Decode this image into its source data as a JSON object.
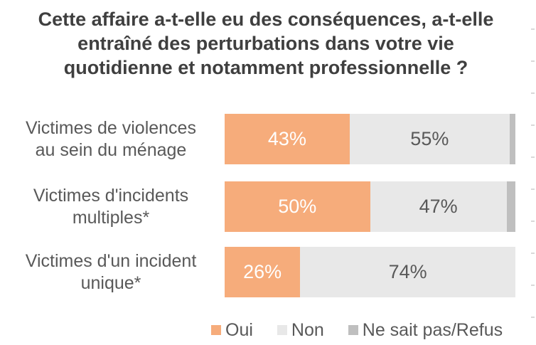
{
  "chart_data": {
    "type": "bar",
    "orientation": "horizontal",
    "stacked": true,
    "title": "Cette affaire a-t-elle eu des conséquences, a-t-elle entraîné des perturbations dans votre vie quotidienne et notamment professionnelle ?",
    "title_lines": [
      "Cette affaire a-t-elle eu des conséquences, a-t-elle",
      "entraîné des perturbations dans votre vie",
      "quotidienne et notamment professionnelle ?"
    ],
    "categories": [
      {
        "label": "Victimes de violences au sein du ménage",
        "label_lines": [
          "Victimes de violences",
          "au sein du ménage"
        ]
      },
      {
        "label": "Victimes d'incidents multiples*",
        "label_lines": [
          "Victimes d'incidents",
          "multiples*"
        ]
      },
      {
        "label": "Victimes d'un incident unique*",
        "label_lines": [
          "Victimes d'un incident",
          "unique*"
        ]
      }
    ],
    "series": [
      {
        "name": "Oui",
        "color": "#F6AC7B",
        "label_color": "#FFFFFF",
        "values": [
          43,
          50,
          26
        ]
      },
      {
        "name": "Non",
        "color": "#E8E8E8",
        "label_color": "#595959",
        "values": [
          55,
          47,
          74
        ]
      },
      {
        "name": "Ne sait pas/Refus",
        "color": "#BFBFBF",
        "values": [
          2,
          3,
          0
        ]
      }
    ],
    "value_suffix": "%",
    "xlim": [
      0,
      100
    ],
    "grid": false,
    "legend_position": "bottom",
    "colors": {
      "title_text": "#3F3F3F",
      "axis_text": "#595959",
      "background": "#FFFFFF"
    }
  }
}
